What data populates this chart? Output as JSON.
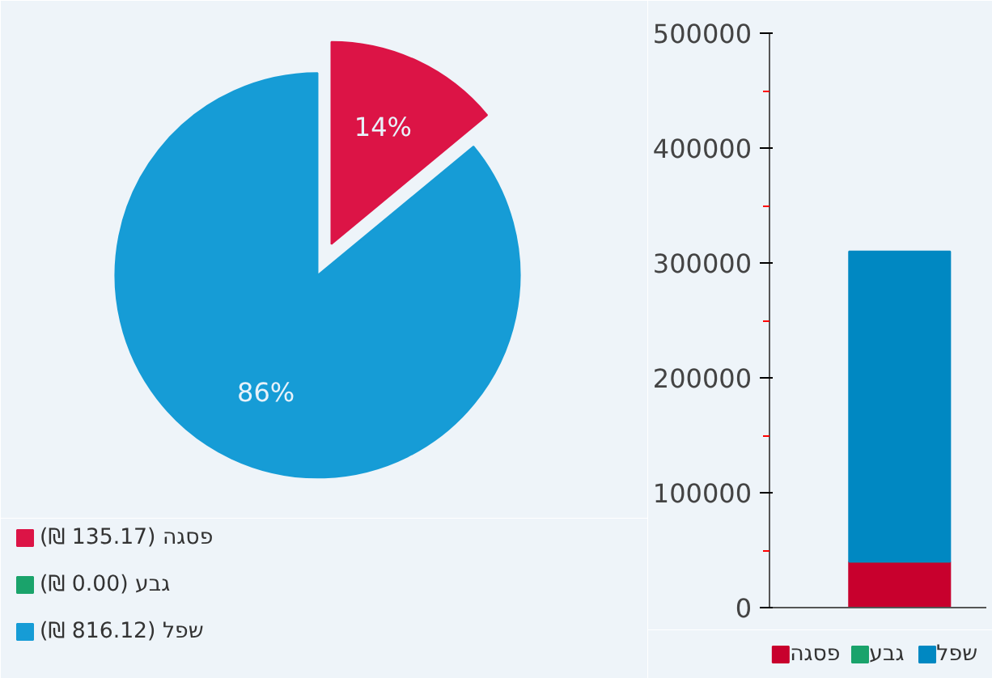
{
  "chart_data": [
    {
      "type": "pie",
      "categories": [
        "פסגה (135.17 ₪)",
        "גבע (0.00 ₪)",
        "שפל (816.12 ₪)"
      ],
      "values": [
        14,
        0,
        86
      ],
      "colors": [
        "#dc1446",
        "#1aa36b",
        "#169cd6"
      ],
      "value_labels": [
        "14%",
        null,
        "86%"
      ],
      "legend": "bottom left"
    },
    {
      "type": "bar",
      "stacked": true,
      "categories": [
        null
      ],
      "series": [
        {
          "name": "פסגה",
          "color": "#c8002d",
          "values": [
            40000
          ]
        },
        {
          "name": "גבע",
          "color": "#1aa36b",
          "values": [
            0
          ]
        },
        {
          "name": "שפל",
          "color": "#0088c2",
          "values": [
            270000
          ]
        }
      ],
      "ylim": [
        0,
        500000
      ],
      "yticks": [
        0,
        {
          "value": 50000,
          "label": null
        },
        100000,
        {
          "value": 150000,
          "label": null
        },
        200000,
        {
          "value": 250000,
          "label": null
        },
        300000,
        {
          "value": 350000,
          "label": null
        },
        400000,
        {
          "value": 450000,
          "label": null
        },
        500000
      ],
      "legend": "bottom"
    }
  ]
}
